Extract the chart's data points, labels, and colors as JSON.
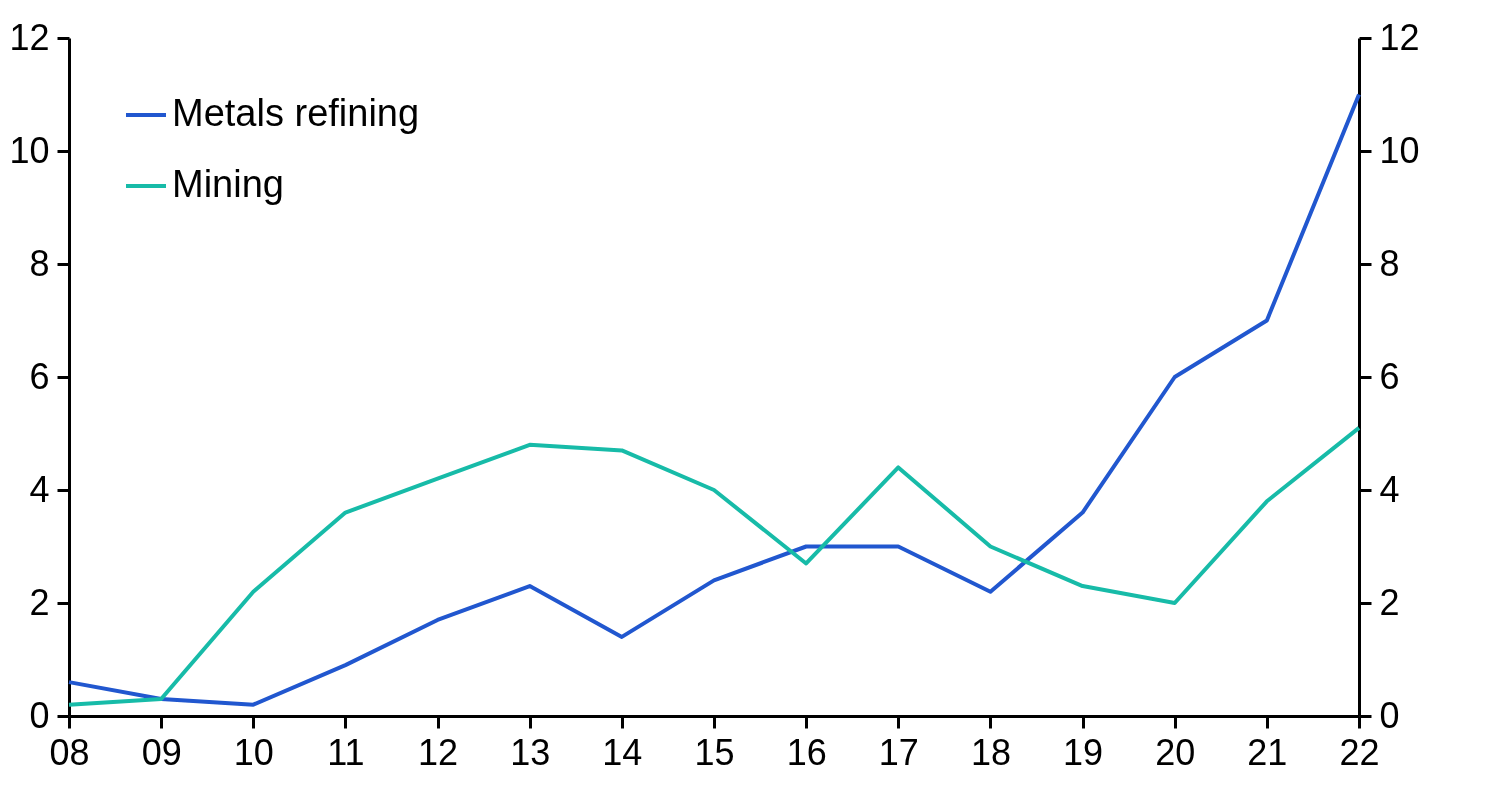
{
  "chart_data": {
    "type": "line",
    "categories": [
      "08",
      "09",
      "10",
      "11",
      "12",
      "13",
      "14",
      "15",
      "16",
      "17",
      "18",
      "19",
      "20",
      "21",
      "22"
    ],
    "series": [
      {
        "name": "Metals refining",
        "color": "#2157cf",
        "values": [
          0.6,
          0.3,
          0.2,
          0.9,
          1.7,
          2.3,
          1.4,
          2.4,
          3.0,
          3.0,
          2.2,
          3.6,
          6.0,
          7.0,
          11.0
        ]
      },
      {
        "name": "Mining",
        "color": "#17bba8",
        "values": [
          0.2,
          0.3,
          2.2,
          3.6,
          4.2,
          4.8,
          4.7,
          4.0,
          2.7,
          4.4,
          3.0,
          2.3,
          2.0,
          3.8,
          5.1
        ]
      }
    ],
    "ylim": [
      0,
      12
    ],
    "yticks": [
      0,
      2,
      4,
      6,
      8,
      10,
      12
    ],
    "y2lim": [
      0,
      12
    ],
    "y2ticks": [
      0,
      2,
      4,
      6,
      8,
      10,
      12
    ],
    "legend": "top left",
    "grid": false,
    "line_style": "solid"
  }
}
